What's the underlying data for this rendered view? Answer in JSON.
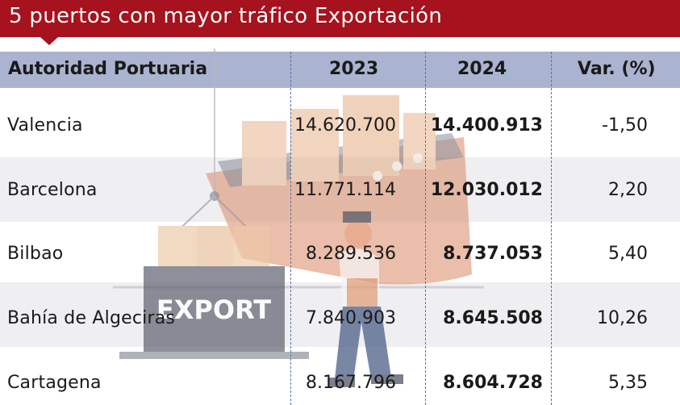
{
  "title": "5 puertos con mayor tráfico Exportación",
  "colors": {
    "title_bar": "#a6121d",
    "header_bg": "#aab3cf",
    "band_bg": "#efeff2",
    "divider": "#5b6fa8"
  },
  "table": {
    "headers": [
      "Autoridad Portuaria",
      "2023",
      "2024",
      "Var. (%)"
    ],
    "rows": [
      {
        "port": "Valencia",
        "y2023": "14.620.700",
        "y2024": "14.400.913",
        "var": "-1,50"
      },
      {
        "port": "Barcelona",
        "y2023": "11.771.114",
        "y2024": "12.030.012",
        "var": "2,20"
      },
      {
        "port": "Bilbao",
        "y2023": "8.289.536",
        "y2024": "8.737.053",
        "var": "5,40"
      },
      {
        "port": "Bahía de Algeciras",
        "y2023": "7.840.903",
        "y2024": "8.645.508",
        "var": "10,26"
      },
      {
        "port": "Cartagena",
        "y2023": "8.167.796",
        "y2024": "8.604.728",
        "var": "5,35"
      }
    ]
  },
  "illustration": {
    "container_label": "EXPORT",
    "icons": [
      "cargo-ship-icon",
      "crane-container-icon",
      "worker-icon"
    ]
  }
}
